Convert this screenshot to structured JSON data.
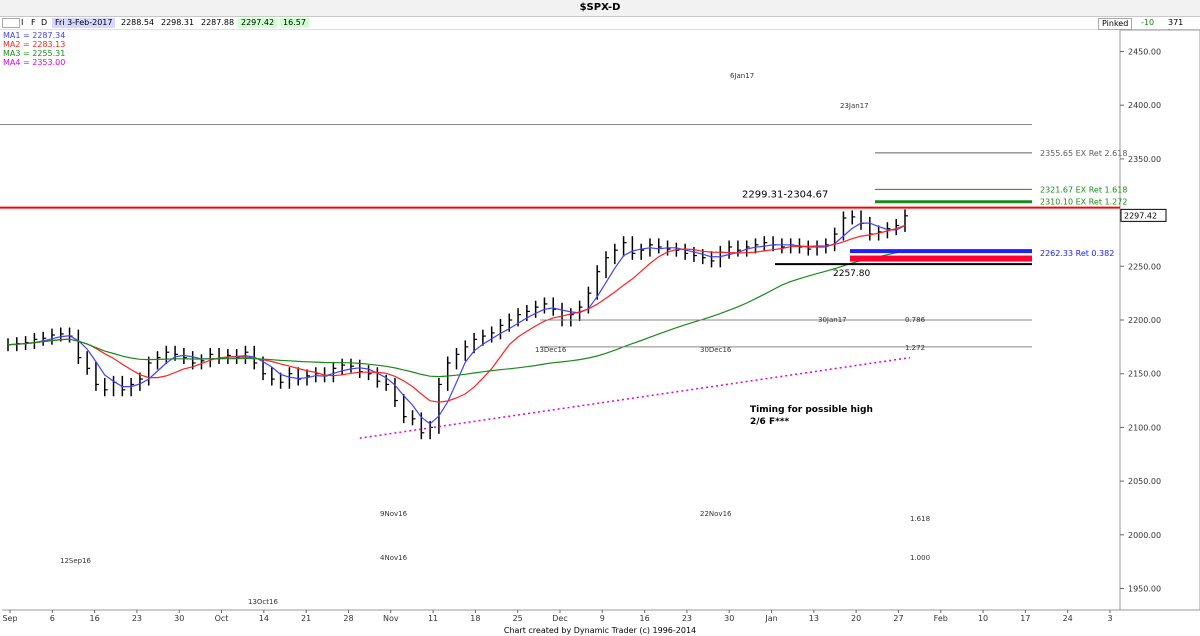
{
  "window": {
    "title": "$SPX-D",
    "quote": {
      "date": "Fri 3-Feb-2017",
      "open": "2288.54",
      "high": "2298.31",
      "low": "2287.88",
      "close": "2297.42",
      "change": "16.57"
    },
    "right_controls": {
      "mode_label": "Pinked",
      "mode_value": "-10",
      "bars_label": "371 bars"
    }
  },
  "moving_averages": [
    {
      "label": "MA1 = 2287.34",
      "color": "#4040ff"
    },
    {
      "label": "MA2 = 2283.13",
      "color": "#ff2020"
    },
    {
      "label": "MA3 = 2255.31",
      "color": "#1a8a1a"
    },
    {
      "label": "MA4 = 2353.00",
      "color": "#e000e0"
    }
  ],
  "price_scale": {
    "ticks": [
      "2450.00",
      "2400.00",
      "2350.00",
      "2300.00",
      "2250.00",
      "2200.00",
      "2150.00",
      "2100.00",
      "2050.00",
      "2000.00",
      "1950.00"
    ]
  },
  "last_price_tag": "2297.42",
  "date_axis": {
    "labels": [
      "Sep",
      "6",
      "16",
      "23",
      "30",
      "Oct",
      "14",
      "21",
      "28",
      "Nov",
      "11",
      "18",
      "25",
      "Dec",
      "9",
      "16",
      "23",
      "30",
      "Jan",
      "13",
      "20",
      "27",
      "Feb",
      "10",
      "17",
      "24",
      "3"
    ]
  },
  "levels": [
    {
      "label": "2355.65 EX Ret 2.618",
      "color": "#606060",
      "value": 2355.65
    },
    {
      "label": "2321.67 EX Ret 1.618",
      "color": "#1a8a1a",
      "value": 2321.67
    },
    {
      "label": "2310.10 EX Ret 1.272",
      "color": "#1a8a1a",
      "value": 2310.1
    },
    {
      "label": "2299.31-2304.67",
      "color": "#000000",
      "value": 2304.67
    },
    {
      "label": "2262.33 Ret 0.382",
      "color": "#2020ff",
      "value": 2262.33
    },
    {
      "label": "2257.80",
      "color": "#000000",
      "value": 2257.8
    }
  ],
  "annotations": [
    {
      "text": "Timing for possible high"
    },
    {
      "text": "2/6 F***"
    }
  ],
  "pivot_labels": [
    {
      "text": "22Nov16"
    },
    {
      "text": "9Nov16"
    },
    {
      "text": "4Nov16"
    },
    {
      "text": "12Sep16"
    },
    {
      "text": "13Oct16"
    },
    {
      "text": "30Dec16"
    },
    {
      "text": "13Dec16"
    },
    {
      "text": "30Jan17"
    },
    {
      "text": "23Jan17"
    },
    {
      "text": "6Jan17"
    },
    {
      "text": "1.618"
    },
    {
      "text": "1.272"
    },
    {
      "text": "0.786"
    },
    {
      "text": "1.000"
    }
  ],
  "footer": "Chart created by Dynamic Trader (c) 1996-2014",
  "chart_data": {
    "type": "line",
    "title": "$SPX-D",
    "ylim": [
      1930,
      2470
    ],
    "series": [
      {
        "values": [
          2177,
          2178,
          2179,
          2182,
          2183,
          2186,
          2187,
          2185,
          2165,
          2155,
          2140,
          2135,
          2142,
          2135,
          2140,
          2145,
          2160,
          2165,
          2170,
          2168,
          2165,
          2160,
          2162,
          2168,
          2165,
          2167,
          2165,
          2170,
          2160,
          2150,
          2145,
          2142,
          2150,
          2145,
          2148,
          2150,
          2148,
          2155,
          2158,
          2157,
          2152,
          2150,
          2143,
          2140,
          2125,
          2110,
          2108,
          2095,
          2100,
          2140,
          2160,
          2168,
          2175,
          2182,
          2185,
          2188,
          2195,
          2200,
          2205,
          2208,
          2212,
          2215,
          2210,
          2200,
          2205,
          2212,
          2225,
          2245,
          2258,
          2265,
          2272,
          2262,
          2265,
          2270,
          2268,
          2266,
          2265,
          2262,
          2260,
          2258,
          2255,
          2263,
          2268,
          2265,
          2268,
          2270,
          2272,
          2270,
          2268,
          2270,
          2268,
          2266,
          2268,
          2270,
          2280,
          2295,
          2296,
          2290,
          2280,
          2282,
          2285,
          2288,
          2297
        ]
      }
    ]
  }
}
